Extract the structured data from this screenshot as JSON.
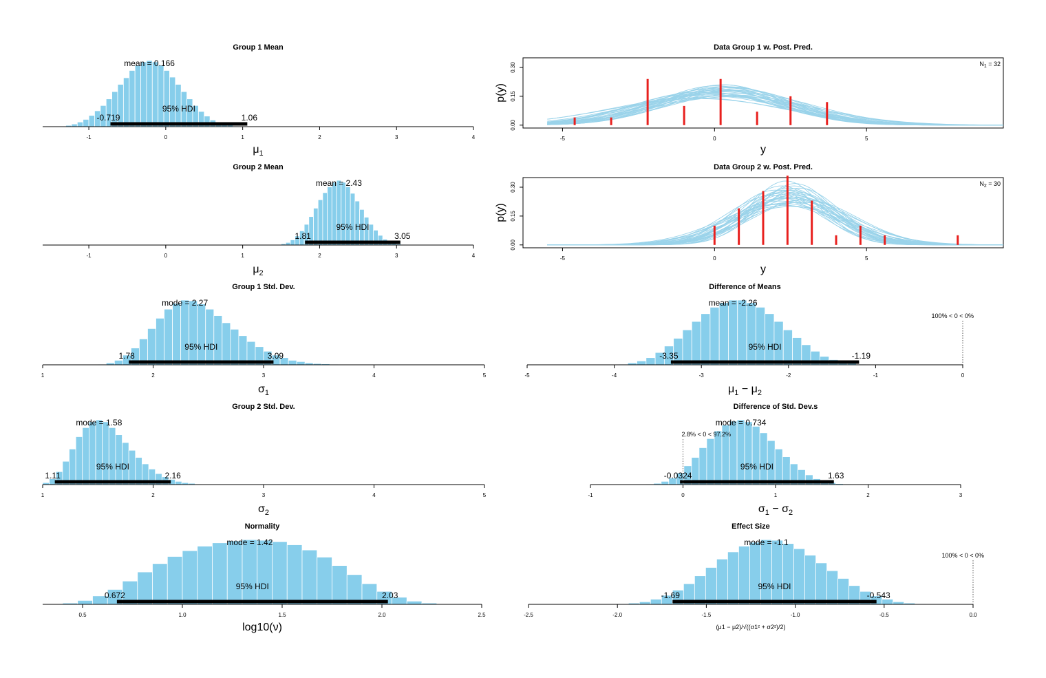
{
  "colors": {
    "bar": "#87CEEB",
    "hdi": "#000000",
    "data": "#E8201E",
    "curve": "#9AD3EA"
  },
  "chart_data": [
    {
      "type": "bar",
      "title": "Group 1 Mean",
      "xlabel": "μ",
      "xlabel_sub": "1",
      "xlim": [
        -1.6,
        4
      ],
      "ticks": [
        -1,
        0,
        1,
        2,
        3,
        4
      ],
      "center_label": "mean = 0.166",
      "hdi": [
        -0.719,
        1.06
      ],
      "hdi_low_label": "-0.719",
      "hdi_high_label": "1.06",
      "hdi_text": "95% HDI",
      "hist": {
        "start": -1.3,
        "width": 0.075,
        "counts": [
          0.02,
          0.04,
          0.07,
          0.11,
          0.17,
          0.24,
          0.32,
          0.42,
          0.53,
          0.64,
          0.74,
          0.85,
          0.93,
          0.98,
          1.0,
          0.98,
          0.93,
          0.85,
          0.75,
          0.64,
          0.53,
          0.42,
          0.32,
          0.23,
          0.16,
          0.1,
          0.06,
          0.03,
          0.02,
          0.01
        ]
      }
    },
    {
      "type": "bar",
      "title": "Group 2 Mean",
      "xlabel": "μ",
      "xlabel_sub": "2",
      "xlim": [
        -1.6,
        4
      ],
      "ticks": [
        -1,
        0,
        1,
        2,
        3,
        4
      ],
      "center_label": "mean = 2.43",
      "hdi": [
        1.81,
        3.05
      ],
      "hdi_low_label": "1.81",
      "hdi_high_label": "3.05",
      "hdi_text": "95% HDI",
      "hist": {
        "start": 1.5,
        "width": 0.06,
        "counts": [
          0.02,
          0.04,
          0.08,
          0.14,
          0.22,
          0.32,
          0.44,
          0.57,
          0.7,
          0.81,
          0.9,
          0.97,
          1.0,
          0.97,
          0.9,
          0.8,
          0.68,
          0.55,
          0.43,
          0.32,
          0.23,
          0.15,
          0.09,
          0.05,
          0.03,
          0.015,
          0.01
        ]
      }
    },
    {
      "type": "bar",
      "title": "Group 1 Std. Dev.",
      "xlabel": "σ",
      "xlabel_sub": "1",
      "xlim": [
        1,
        5
      ],
      "ticks": [
        1,
        2,
        3,
        4,
        5
      ],
      "center_label": "mode = 2.27",
      "hdi": [
        1.78,
        3.09
      ],
      "hdi_low_label": "1.78",
      "hdi_high_label": "3.09",
      "hdi_text": "95% HDI",
      "hist": {
        "start": 1.5,
        "width": 0.075,
        "counts": [
          0.01,
          0.03,
          0.07,
          0.15,
          0.26,
          0.4,
          0.56,
          0.72,
          0.86,
          0.95,
          1.0,
          0.99,
          0.94,
          0.86,
          0.76,
          0.65,
          0.55,
          0.45,
          0.36,
          0.28,
          0.21,
          0.15,
          0.11,
          0.07,
          0.05,
          0.03,
          0.02,
          0.015,
          0.01
        ]
      }
    },
    {
      "type": "bar",
      "title": "Group 2 Std. Dev.",
      "xlabel": "σ",
      "xlabel_sub": "2",
      "xlim": [
        1,
        5
      ],
      "ticks": [
        1,
        2,
        3,
        4,
        5
      ],
      "center_label": "mode = 1.58",
      "hdi": [
        1.11,
        2.16
      ],
      "hdi_low_label": "1.11",
      "hdi_high_label": "2.16",
      "hdi_text": "95% HDI",
      "hist": {
        "start": 1.0,
        "width": 0.06,
        "counts": [
          0.03,
          0.09,
          0.2,
          0.36,
          0.55,
          0.74,
          0.88,
          0.97,
          1.0,
          0.97,
          0.88,
          0.77,
          0.65,
          0.53,
          0.42,
          0.32,
          0.24,
          0.17,
          0.12,
          0.08,
          0.05,
          0.03,
          0.02,
          0.01
        ]
      }
    },
    {
      "type": "bar",
      "title": "Normality",
      "xlabel": "log10(ν)",
      "xlabel_sub": "",
      "xlim": [
        0.3,
        2.5
      ],
      "ticks": [
        0.5,
        1.0,
        1.5,
        2.0,
        2.5
      ],
      "tick_labels": [
        "0.5",
        "1.0",
        "1.5",
        "2.0",
        "2.5"
      ],
      "center_label": "mode = 1.42",
      "hdi": [
        0.672,
        2.03
      ],
      "hdi_low_label": "0.672",
      "hdi_high_label": "2.03",
      "hdi_text": "95% HDI",
      "hist": {
        "start": 0.4,
        "width": 0.075,
        "counts": [
          0.02,
          0.06,
          0.13,
          0.23,
          0.36,
          0.5,
          0.63,
          0.74,
          0.83,
          0.9,
          0.95,
          0.98,
          1.0,
          0.99,
          0.97,
          0.92,
          0.84,
          0.73,
          0.6,
          0.46,
          0.32,
          0.2,
          0.11,
          0.05,
          0.02
        ]
      }
    },
    {
      "type": "line",
      "title": "Data Group 1 w. Post. Pred.",
      "xlabel": "y",
      "ylabel": "p(y)",
      "xlim": [
        -6.3,
        9.5
      ],
      "ylim": [
        -0.015,
        0.35
      ],
      "xticks": [
        -5,
        0,
        5
      ],
      "yticks": [
        0.0,
        0.15,
        0.3
      ],
      "ytick_labels": [
        "0.00",
        "0.15",
        "0.30"
      ],
      "n_label": "N",
      "n_sub": "1",
      "n_value": "= 32",
      "data_x": [
        -4.6,
        -3.4,
        -2.2,
        -1.0,
        0.2,
        1.4,
        2.5,
        3.7
      ],
      "data_y": [
        0.04,
        0.04,
        0.24,
        0.1,
        0.24,
        0.07,
        0.15,
        0.12
      ],
      "curve_range": [
        -5.5,
        9.5
      ],
      "curves": {
        "mu": [
          0.166,
          0.4,
          -0.3,
          0.8,
          0.0,
          -0.6,
          0.3,
          0.9,
          -0.2,
          0.5,
          0.1,
          0.6,
          -0.4,
          0.7,
          0.2,
          -0.1,
          0.45,
          0.05,
          -0.5,
          0.35,
          0.25,
          -0.25,
          0.55,
          0.15,
          0.65,
          -0.05,
          0.3,
          0.1,
          -0.35,
          0.5
        ],
        "sigma": [
          2.3,
          2.0,
          2.6,
          2.2,
          2.1,
          2.8,
          1.9,
          2.4,
          2.5,
          2.0,
          2.2,
          2.7,
          2.3,
          2.1,
          2.0,
          2.4,
          2.6,
          1.95,
          2.9,
          2.25,
          2.15,
          2.35,
          2.05,
          2.45,
          2.55,
          2.1,
          1.9,
          2.65,
          2.3,
          2.2
        ]
      }
    },
    {
      "type": "line",
      "title": "Data Group 2 w. Post. Pred.",
      "xlabel": "y",
      "ylabel": "p(y)",
      "xlim": [
        -6.3,
        9.5
      ],
      "ylim": [
        -0.015,
        0.35
      ],
      "xticks": [
        -5,
        0,
        5
      ],
      "yticks": [
        0.0,
        0.15,
        0.3
      ],
      "ytick_labels": [
        "0.00",
        "0.15",
        "0.30"
      ],
      "n_label": "N",
      "n_sub": "2",
      "n_value": "= 30",
      "data_x": [
        0.0,
        0.8,
        1.6,
        2.4,
        3.2,
        4.0,
        4.8,
        5.6,
        8.0
      ],
      "data_y": [
        0.1,
        0.19,
        0.28,
        0.36,
        0.23,
        0.05,
        0.1,
        0.05,
        0.05
      ],
      "curve_range": [
        -5.5,
        9.5
      ],
      "curves": {
        "mu": [
          2.43,
          2.2,
          2.7,
          2.5,
          2.0,
          2.9,
          2.35,
          2.6,
          2.1,
          2.8,
          2.45,
          2.3,
          2.55,
          2.65,
          2.15,
          2.4,
          2.75,
          2.25,
          2.5,
          3.0,
          1.9,
          2.6,
          2.35,
          2.7,
          2.2,
          2.45,
          2.85,
          2.05,
          2.5,
          2.3
        ],
        "sigma": [
          1.6,
          1.3,
          1.5,
          1.8,
          1.4,
          1.7,
          1.2,
          1.55,
          1.9,
          1.35,
          1.65,
          1.45,
          2.0,
          1.25,
          1.75,
          1.5,
          1.6,
          1.85,
          1.4,
          1.7,
          1.55,
          1.3,
          1.95,
          1.45,
          1.65,
          1.35,
          1.8,
          1.5,
          1.6,
          1.4
        ]
      }
    },
    {
      "type": "bar",
      "title": "Difference of Means",
      "xlabel": "μ",
      "xlabel_sub": "1",
      "xlabel2": "μ",
      "xlabel2_sub": "2",
      "xlim": [
        -5,
        0
      ],
      "ticks": [
        -5,
        -4,
        -3,
        -2,
        -1,
        0
      ],
      "center_label": "mean = -2.26",
      "hdi": [
        -3.35,
        -1.19
      ],
      "hdi_low_label": "-3.35",
      "hdi_high_label": "-1.19",
      "hdi_text": "95% HDI",
      "comp_value": 0,
      "comp_label": "100% < 0 < 0%",
      "hist": {
        "start": -3.95,
        "width": 0.105,
        "counts": [
          0.01,
          0.03,
          0.06,
          0.11,
          0.19,
          0.29,
          0.41,
          0.54,
          0.67,
          0.79,
          0.89,
          0.96,
          1.0,
          1.0,
          0.96,
          0.89,
          0.79,
          0.67,
          0.54,
          0.42,
          0.31,
          0.21,
          0.13,
          0.08,
          0.04,
          0.02,
          0.01
        ]
      }
    },
    {
      "type": "bar",
      "title": "Difference of Std. Dev.s",
      "xlabel": "σ",
      "xlabel_sub": "1",
      "xlabel2": "σ",
      "xlabel2_sub": "2",
      "xlim": [
        -1,
        3
      ],
      "ticks": [
        -1,
        0,
        1,
        2,
        3
      ],
      "center_label": "mode = 0.734",
      "hdi": [
        -0.0324,
        1.63
      ],
      "hdi_low_label": "-0.0324",
      "hdi_high_label": "1.63",
      "hdi_text": "95% HDI",
      "comp_value": 0,
      "comp_label": "2.8% < 0 < 97.2%",
      "hist": {
        "start": -0.4,
        "width": 0.082,
        "counts": [
          0.01,
          0.02,
          0.05,
          0.1,
          0.18,
          0.29,
          0.42,
          0.57,
          0.71,
          0.83,
          0.92,
          0.98,
          1.0,
          0.97,
          0.9,
          0.8,
          0.68,
          0.55,
          0.43,
          0.32,
          0.23,
          0.15,
          0.09,
          0.05,
          0.03,
          0.015,
          0.01
        ]
      }
    },
    {
      "type": "bar",
      "title": "Effect Size",
      "xlabel": "(μ1 − μ2)/√((σ1² + σ2²)/2)",
      "xlim": [
        -2.5,
        0
      ],
      "ticks": [
        -2.5,
        -2.0,
        -1.5,
        -1.0,
        -0.5,
        0.0
      ],
      "tick_labels": [
        "-2.5",
        "-2.0",
        "-1.5",
        "-1.0",
        "-0.5",
        "0.0"
      ],
      "center_label": "mode = -1.1",
      "hdi": [
        -1.69,
        -0.543
      ],
      "hdi_low_label": "-1.69",
      "hdi_high_label": "-0.543",
      "hdi_text": "95% HDI",
      "comp_value": 0,
      "comp_label": "100% < 0 < 0%",
      "hist": {
        "start": -2.0,
        "width": 0.062,
        "counts": [
          0.01,
          0.02,
          0.04,
          0.08,
          0.14,
          0.22,
          0.32,
          0.44,
          0.57,
          0.7,
          0.81,
          0.9,
          0.96,
          1.0,
          0.99,
          0.94,
          0.86,
          0.76,
          0.64,
          0.52,
          0.4,
          0.29,
          0.2,
          0.13,
          0.08,
          0.04,
          0.02,
          0.01
        ]
      }
    }
  ]
}
